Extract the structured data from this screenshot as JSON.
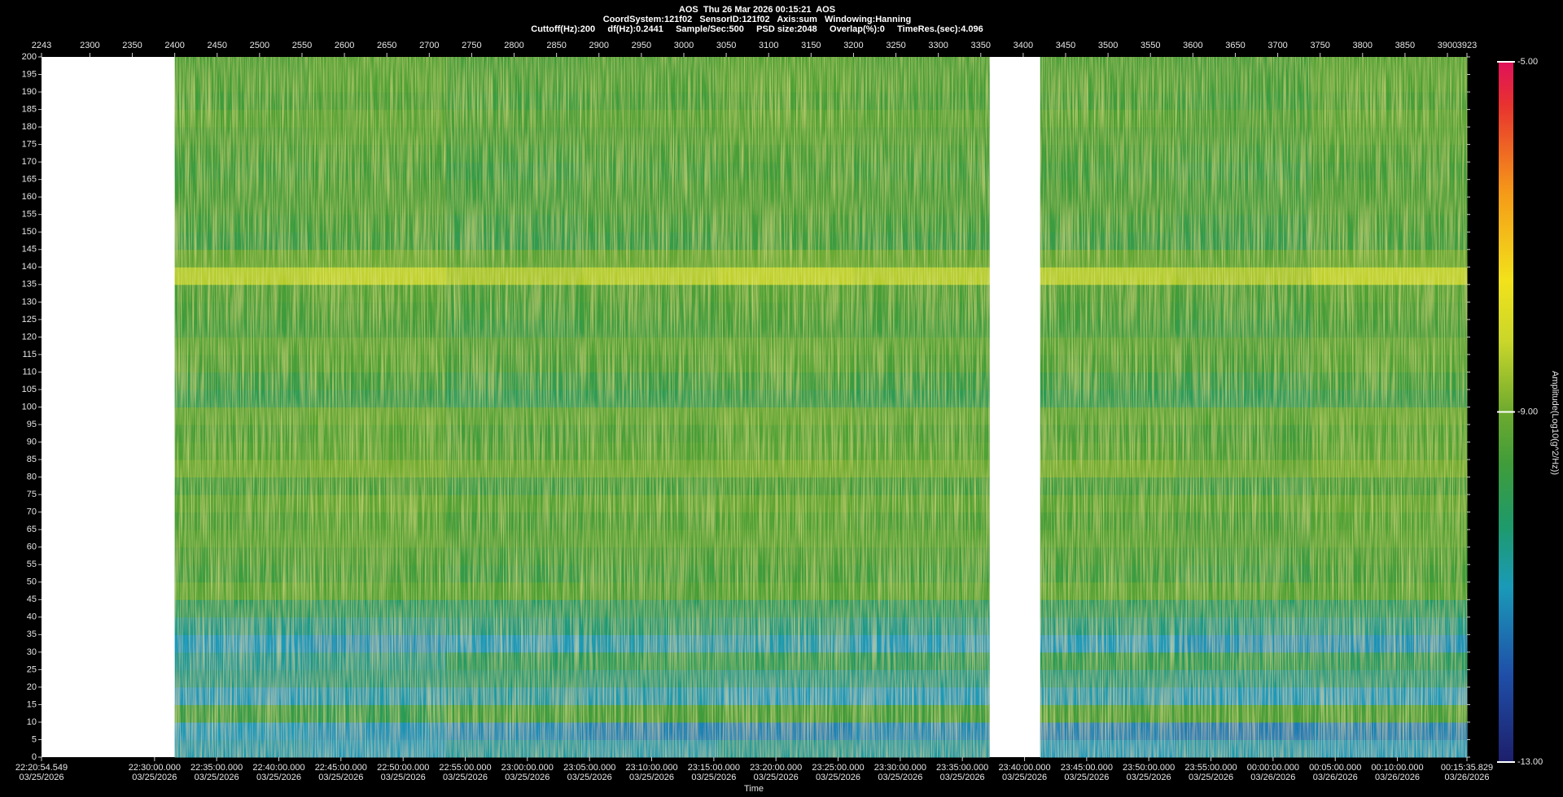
{
  "chart_data": {
    "type": "heatmap",
    "header": [
      "AOS  Thu 26 Mar 2026 00:15:21  AOS",
      "CoordSystem:121f02   SensorID:121f02   Axis:sum   Windowing:Hanning",
      "Cuttoff(Hz):200     df(Hz):0.2441     Sample/Sec:500     PSD size:2048     Overlap(%):0     TimeRes.(sec):4.096"
    ],
    "xlabel": "Time",
    "colorbar_label": "Amplitude(Log10(g^2/Hz))",
    "xlim": [
      2243,
      3923
    ],
    "xticks": [
      2243,
      2300,
      2350,
      2400,
      2450,
      2500,
      2550,
      2600,
      2650,
      2700,
      2750,
      2800,
      2850,
      2900,
      2950,
      3000,
      3050,
      3100,
      3150,
      3200,
      3250,
      3300,
      3350,
      3400,
      3450,
      3500,
      3550,
      3600,
      3650,
      3700,
      3750,
      3800,
      3850,
      3900,
      3923
    ],
    "time_ticks": [
      {
        "value": 2243,
        "label": "22:20:54.549",
        "date": "03/25/2026"
      },
      {
        "value": 2376.2,
        "label": "22:30:00.000",
        "date": "03/25/2026"
      },
      {
        "value": 2449.4,
        "label": "22:35:00.000",
        "date": "03/25/2026"
      },
      {
        "value": 2522.7,
        "label": "22:40:00.000",
        "date": "03/25/2026"
      },
      {
        "value": 2595.9,
        "label": "22:45:00.000",
        "date": "03/25/2026"
      },
      {
        "value": 2669.2,
        "label": "22:50:00.000",
        "date": "03/25/2026"
      },
      {
        "value": 2742.4,
        "label": "22:55:00.000",
        "date": "03/25/2026"
      },
      {
        "value": 2815.6,
        "label": "23:00:00.000",
        "date": "03/25/2026"
      },
      {
        "value": 2888.9,
        "label": "23:05:00.000",
        "date": "03/25/2026"
      },
      {
        "value": 2962.1,
        "label": "23:10:00.000",
        "date": "03/25/2026"
      },
      {
        "value": 3035.4,
        "label": "23:15:00.000",
        "date": "03/25/2026"
      },
      {
        "value": 3108.6,
        "label": "23:20:00.000",
        "date": "03/25/2026"
      },
      {
        "value": 3181.8,
        "label": "23:25:00.000",
        "date": "03/25/2026"
      },
      {
        "value": 3255.1,
        "label": "23:30:00.000",
        "date": "03/25/2026"
      },
      {
        "value": 3328.3,
        "label": "23:35:00.000",
        "date": "03/25/2026"
      },
      {
        "value": 3401.6,
        "label": "23:40:00.000",
        "date": "03/25/2026"
      },
      {
        "value": 3474.8,
        "label": "23:45:00.000",
        "date": "03/25/2026"
      },
      {
        "value": 3548.0,
        "label": "23:50:00.000",
        "date": "03/25/2026"
      },
      {
        "value": 3621.3,
        "label": "23:55:00.000",
        "date": "03/25/2026"
      },
      {
        "value": 3694.5,
        "label": "00:00:00.000",
        "date": "03/26/2026"
      },
      {
        "value": 3767.8,
        "label": "00:05:00.000",
        "date": "03/26/2026"
      },
      {
        "value": 3841.0,
        "label": "00:10:00.000",
        "date": "03/26/2026"
      },
      {
        "value": 3923,
        "label": "00:15:35.829",
        "date": "03/26/2026"
      }
    ],
    "ylim": [
      0,
      200
    ],
    "yticks": [
      0,
      5,
      10,
      15,
      20,
      25,
      30,
      35,
      40,
      45,
      50,
      55,
      60,
      65,
      70,
      75,
      80,
      85,
      90,
      95,
      100,
      105,
      110,
      115,
      120,
      125,
      130,
      135,
      140,
      145,
      150,
      155,
      160,
      165,
      170,
      175,
      180,
      185,
      190,
      195,
      200
    ],
    "zlim": [
      -13,
      -5
    ],
    "zticks": [
      {
        "value": -5,
        "label": "-5.00"
      },
      {
        "value": -9,
        "label": "-9.00"
      },
      {
        "value": -13,
        "label": "-13.00"
      }
    ],
    "colorscale": [
      [
        -13,
        "#1d1f6b"
      ],
      [
        -12,
        "#1f4fa8"
      ],
      [
        -11,
        "#1a9ab8"
      ],
      [
        -10.3,
        "#1e9a6a"
      ],
      [
        -9.6,
        "#3f9c3a"
      ],
      [
        -9,
        "#6eaa2e"
      ],
      [
        -8.2,
        "#c9d62a"
      ],
      [
        -7.5,
        "#f2e21b"
      ],
      [
        -6.5,
        "#f59a18"
      ],
      [
        -5.5,
        "#e8332f"
      ],
      [
        -5,
        "#e0105a"
      ]
    ],
    "x_edges": [
      2243,
      2400,
      2560,
      2720,
      2880,
      3040,
      3200,
      3360,
      3420,
      3580,
      3740,
      3923
    ],
    "y_edges": [
      0,
      5,
      10,
      15,
      20,
      25,
      30,
      35,
      40,
      45,
      50,
      55,
      60,
      65,
      70,
      75,
      80,
      85,
      90,
      95,
      100,
      105,
      110,
      115,
      120,
      125,
      130,
      135,
      140,
      145,
      150,
      155,
      160,
      165,
      170,
      175,
      180,
      185,
      190,
      195,
      200
    ],
    "z": [
      [
        null,
        -10.9,
        -11.0,
        -10.8,
        -10.9,
        -10.7,
        -10.8,
        null,
        -11.0,
        -10.9,
        -11.0
      ],
      [
        null,
        -11.0,
        -11.1,
        -11.2,
        -11.3,
        -11.3,
        -11.2,
        null,
        -11.3,
        -11.4,
        -11.3
      ],
      [
        null,
        -9.8,
        -10.0,
        -9.7,
        -9.6,
        -9.6,
        -9.7,
        null,
        -9.6,
        -9.5,
        -9.6
      ],
      [
        null,
        -11.0,
        -10.9,
        -10.8,
        -10.9,
        -11.0,
        -11.0,
        null,
        -10.9,
        -11.0,
        -11.0
      ],
      [
        null,
        -10.6,
        -10.5,
        -10.4,
        -10.5,
        -10.6,
        -10.6,
        null,
        -10.5,
        -10.6,
        -10.5
      ],
      [
        null,
        -10.7,
        -10.6,
        -10.2,
        -10.1,
        -10.1,
        -10.2,
        null,
        -10.0,
        -10.1,
        -10.2
      ],
      [
        null,
        -11.0,
        -11.1,
        -11.0,
        -10.9,
        -10.9,
        -11.0,
        null,
        -11.0,
        -11.1,
        -11.1
      ],
      [
        null,
        -10.6,
        -10.6,
        -10.5,
        -10.4,
        -10.5,
        -10.6,
        null,
        -10.5,
        -10.6,
        -10.6
      ],
      [
        null,
        -10.2,
        -10.3,
        -10.3,
        -10.2,
        -10.2,
        -10.3,
        null,
        -10.2,
        -10.3,
        -10.3
      ],
      [
        null,
        -9.3,
        -9.4,
        -9.4,
        -9.5,
        -9.4,
        -9.4,
        null,
        -9.3,
        -9.4,
        -9.4
      ],
      [
        null,
        -9.7,
        -9.6,
        -9.8,
        -9.7,
        -9.6,
        -9.7,
        null,
        -9.7,
        -9.8,
        -9.6
      ],
      [
        null,
        -9.6,
        -9.5,
        -9.7,
        -9.6,
        -9.5,
        -9.6,
        null,
        -9.6,
        -9.7,
        -9.5
      ],
      [
        null,
        -9.4,
        -9.3,
        -9.5,
        -9.4,
        -9.3,
        -9.4,
        null,
        -9.4,
        -9.5,
        -9.3
      ],
      [
        null,
        -9.5,
        -9.4,
        -9.6,
        -9.5,
        -9.4,
        -9.5,
        null,
        -9.5,
        -9.6,
        -9.4
      ],
      [
        null,
        -9.3,
        -9.2,
        -9.4,
        -9.3,
        -9.2,
        -9.3,
        null,
        -9.3,
        -9.4,
        -9.2
      ],
      [
        null,
        -9.7,
        -9.6,
        -9.8,
        -9.7,
        -9.6,
        -9.7,
        null,
        -9.7,
        -9.8,
        -9.6
      ],
      [
        null,
        -9.1,
        -9.0,
        -9.2,
        -9.1,
        -9.0,
        -9.1,
        null,
        -9.0,
        -9.2,
        -9.0
      ],
      [
        null,
        -9.4,
        -9.3,
        -9.5,
        -9.4,
        -9.3,
        -9.4,
        null,
        -9.4,
        -9.5,
        -9.3
      ],
      [
        null,
        -9.5,
        -9.4,
        -9.6,
        -9.5,
        -9.4,
        -9.5,
        null,
        -9.5,
        -9.6,
        -9.4
      ],
      [
        null,
        -9.3,
        -9.2,
        -9.4,
        -9.3,
        -9.2,
        -9.3,
        null,
        -9.3,
        -9.4,
        -9.2
      ],
      [
        null,
        -10.0,
        -9.9,
        -10.1,
        -10.0,
        -9.9,
        -10.0,
        null,
        -10.0,
        -10.1,
        -9.9
      ],
      [
        null,
        -9.8,
        -9.7,
        -9.9,
        -9.8,
        -9.7,
        -9.8,
        null,
        -9.8,
        -9.9,
        -9.7
      ],
      [
        null,
        -9.5,
        -9.4,
        -9.6,
        -9.5,
        -9.4,
        -9.5,
        null,
        -9.5,
        -9.6,
        -9.4
      ],
      [
        null,
        -9.4,
        -9.3,
        -9.5,
        -9.4,
        -9.3,
        -9.4,
        null,
        -9.4,
        -9.5,
        -9.3
      ],
      [
        null,
        -9.7,
        -9.6,
        -9.8,
        -9.7,
        -9.6,
        -9.7,
        null,
        -9.7,
        -9.8,
        -9.6
      ],
      [
        null,
        -9.6,
        -9.5,
        -9.7,
        -9.6,
        -9.5,
        -9.6,
        null,
        -9.6,
        -9.7,
        -9.5
      ],
      [
        null,
        -9.5,
        -9.4,
        -9.6,
        -9.5,
        -9.4,
        -9.5,
        null,
        -9.5,
        -9.6,
        -9.4
      ],
      [
        null,
        -8.4,
        -8.3,
        -8.5,
        -8.4,
        -8.3,
        -8.4,
        null,
        -8.4,
        -8.5,
        -8.3
      ],
      [
        null,
        -9.2,
        -9.1,
        -9.3,
        -9.2,
        -9.1,
        -9.2,
        null,
        -9.2,
        -9.3,
        -9.1
      ],
      [
        null,
        -9.8,
        -9.7,
        -9.9,
        -9.8,
        -9.7,
        -9.8,
        null,
        -9.8,
        -9.9,
        -9.7
      ],
      [
        null,
        -9.7,
        -9.6,
        -9.8,
        -9.7,
        -9.6,
        -9.7,
        null,
        -9.7,
        -9.8,
        -9.6
      ],
      [
        null,
        -9.6,
        -9.5,
        -9.7,
        -9.6,
        -9.5,
        -9.6,
        null,
        -9.6,
        -9.7,
        -9.5
      ],
      [
        null,
        -9.6,
        -9.5,
        -9.7,
        -9.6,
        -9.5,
        -9.6,
        null,
        -9.6,
        -9.7,
        -9.5
      ],
      [
        null,
        -9.7,
        -9.6,
        -9.8,
        -9.7,
        -9.6,
        -9.7,
        null,
        -9.7,
        -9.8,
        -9.6
      ],
      [
        null,
        -9.6,
        -9.5,
        -9.7,
        -9.6,
        -9.5,
        -9.6,
        null,
        -9.6,
        -9.7,
        -9.5
      ],
      [
        null,
        -9.5,
        -9.4,
        -9.6,
        -9.5,
        -9.4,
        -9.5,
        null,
        -9.5,
        -9.6,
        -9.4
      ],
      [
        null,
        -9.4,
        -9.3,
        -9.5,
        -9.4,
        -9.3,
        -9.4,
        null,
        -9.4,
        -9.5,
        -9.3
      ],
      [
        null,
        -9.6,
        -9.5,
        -9.7,
        -9.6,
        -9.5,
        -9.6,
        null,
        -9.6,
        -9.7,
        -9.5
      ],
      [
        null,
        -9.5,
        -9.4,
        -9.6,
        -9.5,
        -9.4,
        -9.5,
        null,
        -9.5,
        -9.6,
        -9.4
      ],
      [
        null,
        -9.5,
        -9.4,
        -9.6,
        -9.5,
        -9.4,
        -9.5,
        null,
        -9.5,
        -9.6,
        -9.4
      ]
    ]
  }
}
